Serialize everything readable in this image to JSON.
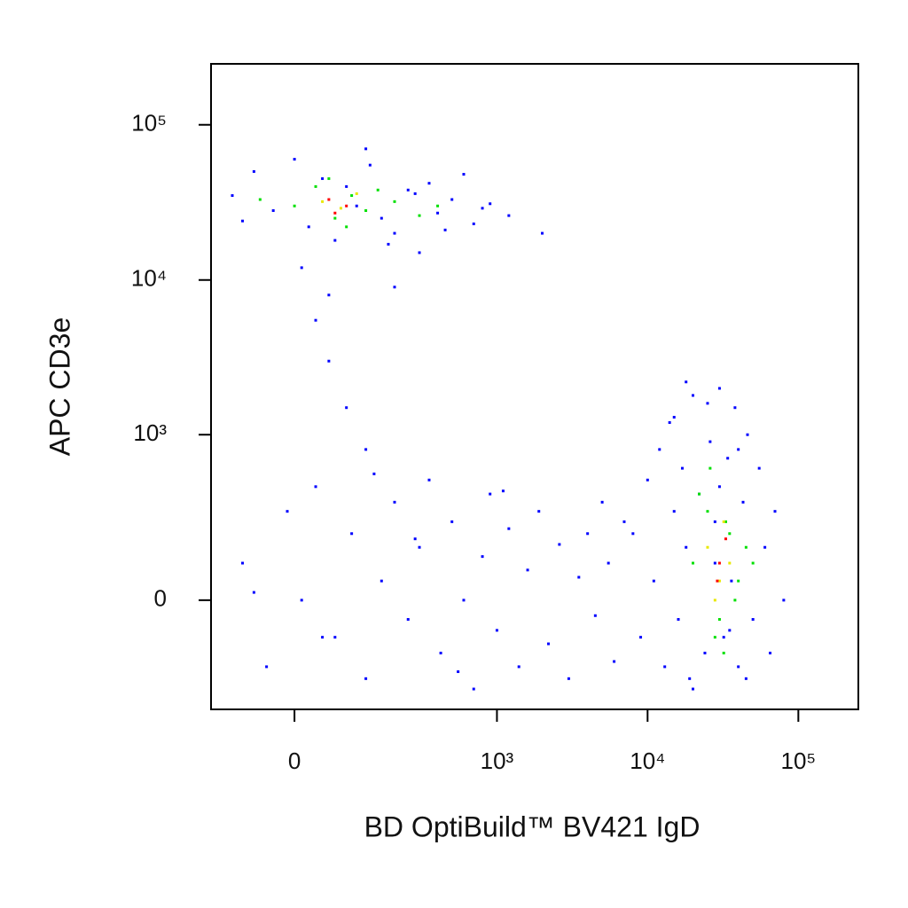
{
  "chart_data": {
    "type": "scatter",
    "x_label": "BD OptiBuild™ BV421 IgD",
    "y_label": "APC CD3e",
    "scale": "biexponential",
    "xlim": [
      -150,
      250000
    ],
    "ylim": [
      -420,
      247000
    ],
    "xticks": [
      0,
      {
        "value": 1000,
        "label": "10³"
      },
      {
        "value": 10000,
        "label": "10⁴"
      },
      {
        "value": 100000,
        "label": "10⁵"
      }
    ],
    "yticks": [
      0,
      {
        "value": 1000,
        "label": "10³"
      },
      {
        "value": 10000,
        "label": "10⁴"
      },
      {
        "value": 100000,
        "label": "10⁵"
      }
    ],
    "series": [
      {
        "color": "#0000ff",
        "x": [
          -100,
          -60,
          -30,
          0,
          20,
          40,
          60,
          80,
          100,
          130,
          160,
          200,
          250,
          300,
          350,
          400,
          500,
          600,
          700,
          900,
          1200,
          2000,
          -80,
          10,
          50,
          120,
          180,
          280,
          450,
          800,
          50,
          80,
          120,
          30,
          200,
          -80,
          -40,
          -10,
          10,
          30,
          60,
          90,
          120,
          160,
          200,
          250,
          300,
          350,
          420,
          500,
          600,
          700,
          800,
          900,
          1000,
          1200,
          1400,
          1600,
          1900,
          2200,
          2600,
          3000,
          3500,
          4000,
          4500,
          5000,
          5500,
          6000,
          7000,
          -60,
          40,
          140,
          280,
          550,
          1100,
          8000,
          9000,
          10000,
          11000,
          12000,
          13000,
          14000,
          15000,
          16000,
          17000,
          18000,
          19000,
          20000,
          22000,
          24000,
          26000,
          28000,
          30000,
          32000,
          34000,
          36000,
          38000,
          40000,
          43000,
          46000,
          50000,
          55000,
          60000,
          65000,
          70000,
          15000,
          20000,
          25000,
          30000,
          35000,
          40000,
          18000,
          28000,
          45000,
          80000
        ],
        "y": [
          35000,
          50000,
          28000,
          60000,
          22000,
          45000,
          18000,
          40000,
          30000,
          55000,
          25000,
          20000,
          38000,
          15000,
          42000,
          27000,
          33000,
          48000,
          23000,
          31000,
          26000,
          20000,
          24000,
          12000,
          8000,
          70000,
          17000,
          36000,
          21000,
          29000,
          3000,
          1500,
          800,
          5500,
          9000,
          100,
          -200,
          300,
          0,
          450,
          -100,
          200,
          -250,
          50,
          350,
          -50,
          150,
          500,
          -150,
          250,
          0,
          -300,
          120,
          400,
          -80,
          220,
          -200,
          80,
          300,
          -120,
          160,
          -250,
          60,
          200,
          -40,
          350,
          100,
          -180,
          250,
          20,
          -100,
          550,
          180,
          -220,
          420,
          200,
          -100,
          500,
          50,
          800,
          -200,
          1200,
          300,
          -50,
          600,
          150,
          -250,
          1800,
          400,
          -150,
          900,
          250,
          2000,
          -100,
          700,
          50,
          1500,
          -200,
          350,
          1000,
          -50,
          600,
          150,
          -150,
          300,
          1300,
          -300,
          1600,
          450,
          -80,
          800,
          2200,
          100,
          -250,
          0
        ]
      },
      {
        "color": "#00e000",
        "x": [
          0,
          30,
          60,
          90,
          120,
          200,
          300,
          50,
          80,
          150,
          -50,
          400,
          20000,
          25000,
          30000,
          35000,
          40000,
          45000,
          22000,
          28000,
          33000,
          38000,
          50000,
          26000,
          32000
        ],
        "y": [
          30000,
          40000,
          25000,
          35000,
          28000,
          32000,
          26000,
          45000,
          22000,
          38000,
          33000,
          30000,
          100,
          300,
          -50,
          200,
          50,
          150,
          400,
          -100,
          250,
          0,
          100,
          600,
          -150
        ]
      },
      {
        "color": "#e8e800",
        "x": [
          40,
          70,
          100,
          25000,
          30000,
          35000,
          32000,
          28000
        ],
        "y": [
          32000,
          29000,
          36000,
          150,
          50,
          100,
          250,
          0
        ]
      },
      {
        "color": "#ff0000",
        "x": [
          50,
          80,
          60,
          30000,
          33000,
          29000
        ],
        "y": [
          33000,
          30000,
          27000,
          100,
          180,
          50
        ]
      }
    ]
  }
}
